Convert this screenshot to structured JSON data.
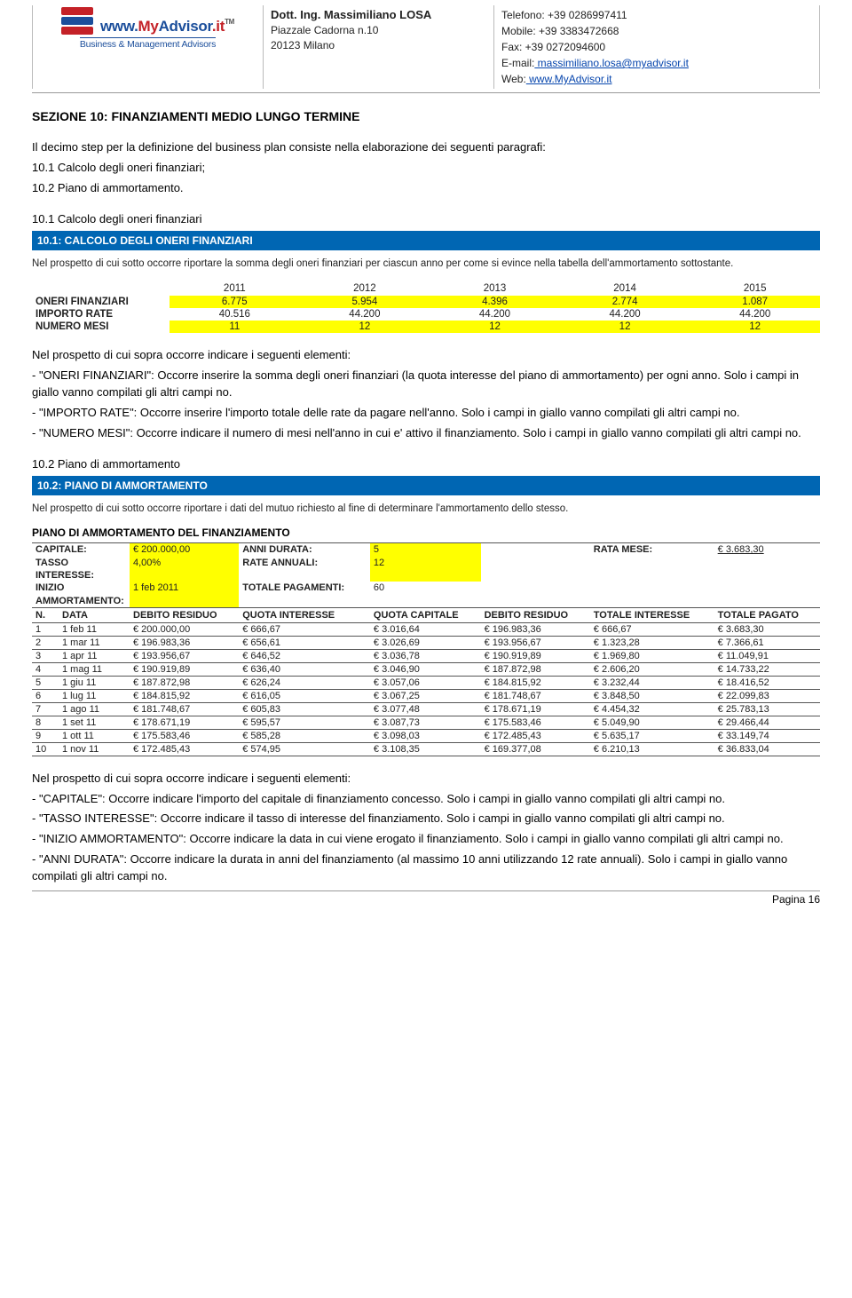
{
  "header": {
    "brand": {
      "www": "www.",
      "my": "My",
      "advisor": "Advisor",
      "it": ".it",
      "tm": "TM",
      "tagline": "Business & Management Advisors"
    },
    "addr": {
      "name": "Dott. Ing. Massimiliano LOSA",
      "line1": "Piazzale Cadorna n.10",
      "line2": "20123 Milano"
    },
    "contact": {
      "tel_lbl": "Telefono:",
      "tel": " +39 0286997411",
      "mob_lbl": "Mobile:",
      "mob": " +39 3383472668",
      "fax_lbl": "Fax:",
      "fax": " +39 0272094600",
      "email_lbl": "E-mail:",
      "email": " massimiliano.losa@myadvisor.it",
      "web_lbl": "Web:",
      "web": " www.MyAdvisor.it"
    }
  },
  "title": "SEZIONE 10: FINANZIAMENTI MEDIO LUNGO TERMINE",
  "intro": {
    "p1": "Il decimo step per la definizione del business plan consiste nella elaborazione dei seguenti paragrafi:",
    "p2": "10.1 Calcolo degli oneri finanziari;",
    "p3": "10.2 Piano di ammortamento."
  },
  "s101": {
    "subtitle": "10.1 Calcolo degli oneri finanziari",
    "bar": "10.1: CALCOLO DEGLI ONERI FINANZIARI",
    "note": "Nel prospetto di cui sotto occorre riportare la somma degli oneri finanziari per ciascun anno per come si evince nella tabella dell'ammortamento sottostante.",
    "years": [
      "2011",
      "2012",
      "2013",
      "2014",
      "2015"
    ],
    "rows": [
      {
        "label": "ONERI FINANZIARI",
        "vals": [
          "6.775",
          "5.954",
          "4.396",
          "2.774",
          "1.087"
        ],
        "yellow": true
      },
      {
        "label": "IMPORTO RATE",
        "vals": [
          "40.516",
          "44.200",
          "44.200",
          "44.200",
          "44.200"
        ],
        "yellow": false
      },
      {
        "label": "NUMERO MESI",
        "vals": [
          "11",
          "12",
          "12",
          "12",
          "12"
        ],
        "yellow": true
      }
    ],
    "p_intro": "Nel prospetto di cui sopra occorre indicare i seguenti elementi:",
    "p1": "- \"ONERI FINANZIARI\": Occorre inserire la somma degli oneri finanziari (la quota interesse del piano di ammortamento) per ogni anno. Solo i campi in giallo vanno compilati gli altri campi no.",
    "p2": "- \"IMPORTO RATE\": Occorre inserire l'importo totale delle rate da pagare nell'anno. Solo i campi in giallo vanno compilati gli altri campi no.",
    "p3": "- \"NUMERO MESI\": Occorre indicare il numero di mesi nell'anno in cui e' attivo il finanziamento. Solo i campi in giallo vanno compilati gli altri campi no."
  },
  "s102": {
    "subtitle": "10.2 Piano di ammortamento",
    "bar": "10.2: PIANO DI AMMORTAMENTO",
    "note": "Nel prospetto di cui sotto occorre riportare i dati del mutuo richiesto al fine di determinare l'ammortamento dello stesso.",
    "caption": "PIANO DI AMMORTAMENTO DEL FINANZIAMENTO",
    "params": {
      "cap_l": "CAPITALE:",
      "cap_v": "€ 200.000,00",
      "tas_l": "TASSO INTERESSE:",
      "tas_v": "4,00%",
      "ini_l": "INIZIO AMMORTAMENTO:",
      "ini_v": "1 feb 2011",
      "ann_l": "ANNI DURATA:",
      "ann_v": "5",
      "rat_l": "RATE ANNUALI:",
      "rat_v": "12",
      "tot_l": "TOTALE PAGAMENTI:",
      "tot_v": "60",
      "rme_l": "RATA MESE:",
      "rme_v": "€ 3.683,30"
    },
    "cols": [
      "N.",
      "DATA",
      "DEBITO RESIDUO",
      "QUOTA INTERESSE",
      "QUOTA CAPITALE",
      "DEBITO RESIDUO",
      "TOTALE INTERESSE",
      "TOTALE PAGATO"
    ],
    "rows": [
      [
        "1",
        "1 feb 11",
        "€ 200.000,00",
        "€ 666,67",
        "€ 3.016,64",
        "€ 196.983,36",
        "€ 666,67",
        "€ 3.683,30"
      ],
      [
        "2",
        "1 mar 11",
        "€ 196.983,36",
        "€ 656,61",
        "€ 3.026,69",
        "€ 193.956,67",
        "€ 1.323,28",
        "€ 7.366,61"
      ],
      [
        "3",
        "1 apr 11",
        "€ 193.956,67",
        "€ 646,52",
        "€ 3.036,78",
        "€ 190.919,89",
        "€ 1.969,80",
        "€ 11.049,91"
      ],
      [
        "4",
        "1 mag 11",
        "€ 190.919,89",
        "€ 636,40",
        "€ 3.046,90",
        "€ 187.872,98",
        "€ 2.606,20",
        "€ 14.733,22"
      ],
      [
        "5",
        "1 giu 11",
        "€ 187.872,98",
        "€ 626,24",
        "€ 3.057,06",
        "€ 184.815,92",
        "€ 3.232,44",
        "€ 18.416,52"
      ],
      [
        "6",
        "1 lug 11",
        "€ 184.815,92",
        "€ 616,05",
        "€ 3.067,25",
        "€ 181.748,67",
        "€ 3.848,50",
        "€ 22.099,83"
      ],
      [
        "7",
        "1 ago 11",
        "€ 181.748,67",
        "€ 605,83",
        "€ 3.077,48",
        "€ 178.671,19",
        "€ 4.454,32",
        "€ 25.783,13"
      ],
      [
        "8",
        "1 set 11",
        "€ 178.671,19",
        "€ 595,57",
        "€ 3.087,73",
        "€ 175.583,46",
        "€ 5.049,90",
        "€ 29.466,44"
      ],
      [
        "9",
        "1 ott 11",
        "€ 175.583,46",
        "€ 585,28",
        "€ 3.098,03",
        "€ 172.485,43",
        "€ 5.635,17",
        "€ 33.149,74"
      ],
      [
        "10",
        "1 nov 11",
        "€ 172.485,43",
        "€ 574,95",
        "€ 3.108,35",
        "€ 169.377,08",
        "€ 6.210,13",
        "€ 36.833,04"
      ]
    ],
    "p_intro": "Nel prospetto di cui sopra occorre indicare i seguenti elementi:",
    "p1": "- \"CAPITALE\": Occorre indicare l'importo del capitale di finanziamento concesso. Solo i campi in giallo vanno compilati gli altri campi no.",
    "p2": "- \"TASSO INTERESSE\": Occorre indicare il tasso di interesse del finanziamento. Solo i campi in giallo vanno compilati gli altri campi no.",
    "p3": "- \"INIZIO AMMORTAMENTO\": Occorre indicare la data in cui viene erogato il finanziamento. Solo i campi in giallo vanno compilati gli altri campi no.",
    "p4": "- \"ANNI DURATA\": Occorre indicare la durata in anni del finanziamento (al massimo 10 anni utilizzando 12 rate annuali). Solo i campi in giallo vanno compilati gli altri campi no."
  },
  "page": "Pagina 16"
}
